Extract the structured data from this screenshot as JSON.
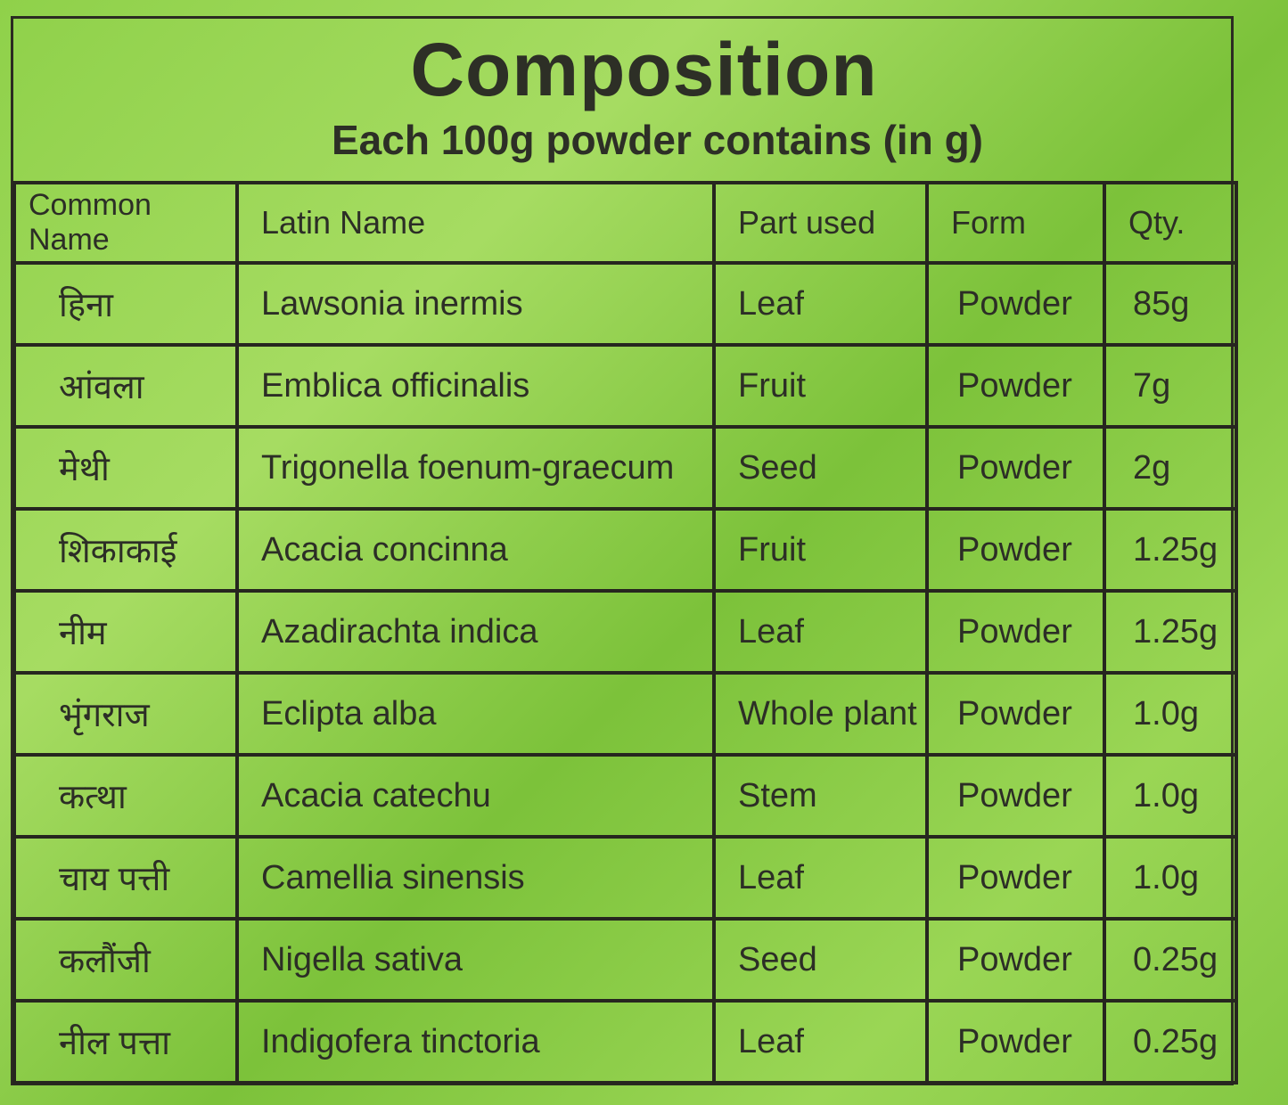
{
  "title": "Composition",
  "subtitle": "Each 100g powder contains (in g)",
  "headers": [
    "Common Name",
    "Latin Name",
    "Part used",
    "Form",
    "Qty."
  ],
  "rows": [
    [
      "हिना",
      "Lawsonia inermis",
      "Leaf",
      "Powder",
      "85g"
    ],
    [
      "आंवला",
      "Emblica officinalis",
      "Fruit",
      "Powder",
      "7g"
    ],
    [
      "मेथी",
      "Trigonella foenum-graecum",
      "Seed",
      "Powder",
      "2g"
    ],
    [
      "शिकाकाई",
      "Acacia concinna",
      "Fruit",
      "Powder",
      "1.25g"
    ],
    [
      "नीम",
      "Azadirachta indica",
      "Leaf",
      "Powder",
      "1.25g"
    ],
    [
      "भृंगराज",
      "Eclipta alba",
      "Whole plant",
      "Powder",
      "1.0g"
    ],
    [
      "कत्था",
      "Acacia catechu",
      "Stem",
      "Powder",
      "1.0g"
    ],
    [
      "चाय पत्ती",
      "Camellia sinensis",
      "Leaf",
      "Powder",
      "1.0g"
    ],
    [
      "कलौंजी",
      "Nigella sativa",
      "Seed",
      "Powder",
      "0.25g"
    ],
    [
      "नील पत्ता",
      "Indigofera tinctoria",
      "Leaf",
      "Powder",
      "0.25g"
    ]
  ]
}
